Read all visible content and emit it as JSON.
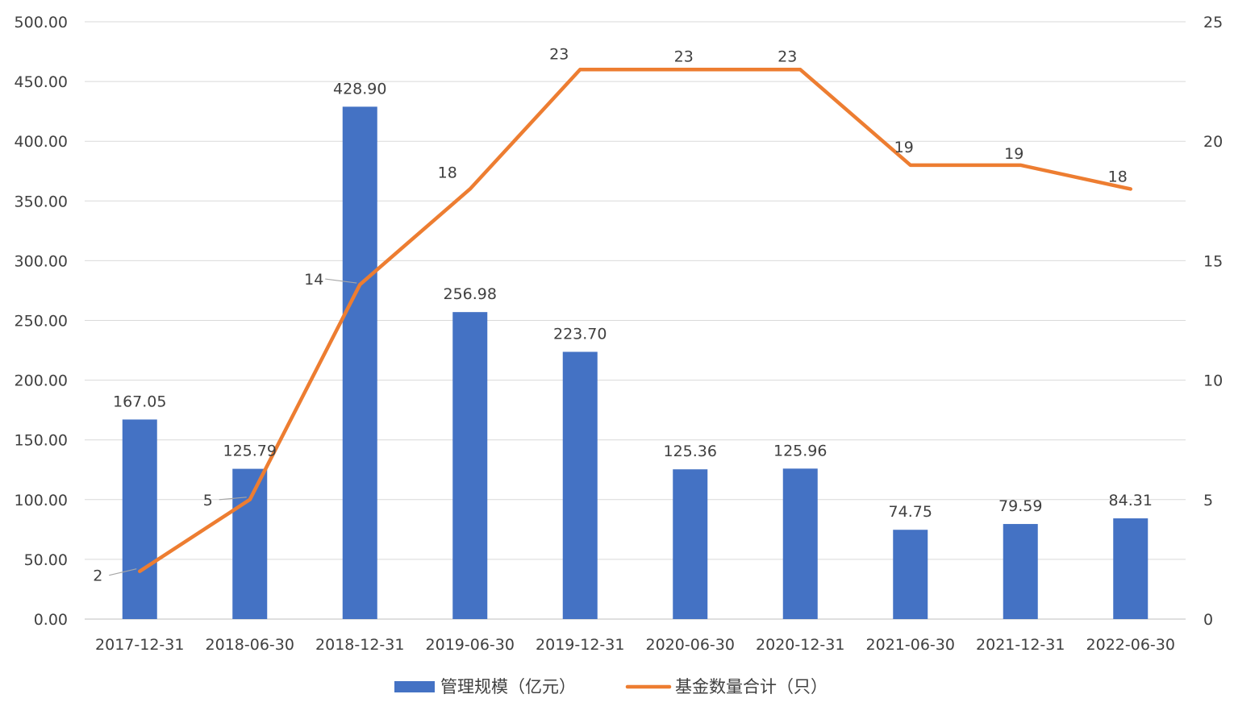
{
  "chart_data": {
    "type": "bar",
    "categories": [
      "2017-12-31",
      "2018-06-30",
      "2018-12-31",
      "2019-06-30",
      "2019-12-31",
      "2020-06-30",
      "2020-12-31",
      "2021-06-30",
      "2021-12-31",
      "2022-06-30"
    ],
    "series": [
      {
        "name": "管理规模（亿元）",
        "type": "bar",
        "axis": "left",
        "color": "#4472C4",
        "values": [
          167.05,
          125.79,
          428.9,
          256.98,
          223.7,
          125.36,
          125.96,
          74.75,
          79.59,
          84.31
        ],
        "labels": [
          "167.05",
          "125.79",
          "428.90",
          "256.98",
          "223.70",
          "125.36",
          "125.96",
          "74.75",
          "79.59",
          "84.31"
        ]
      },
      {
        "name": "基金数量合计（只）",
        "type": "line",
        "axis": "right",
        "color": "#ED7D31",
        "values": [
          2,
          5,
          14,
          18,
          23,
          23,
          23,
          19,
          19,
          18
        ],
        "labels": [
          "2",
          "5",
          "14",
          "18",
          "23",
          "23",
          "23",
          "19",
          "19",
          "18"
        ]
      }
    ],
    "y_left": {
      "min": 0,
      "max": 500,
      "ticks": [
        "0.00",
        "50.00",
        "100.00",
        "150.00",
        "200.00",
        "250.00",
        "300.00",
        "350.00",
        "400.00",
        "450.00",
        "500.00"
      ]
    },
    "y_right": {
      "min": 0,
      "max": 25,
      "ticks": [
        "0",
        "5",
        "10",
        "15",
        "20",
        "25"
      ]
    },
    "grid": true,
    "legend_position": "bottom"
  }
}
